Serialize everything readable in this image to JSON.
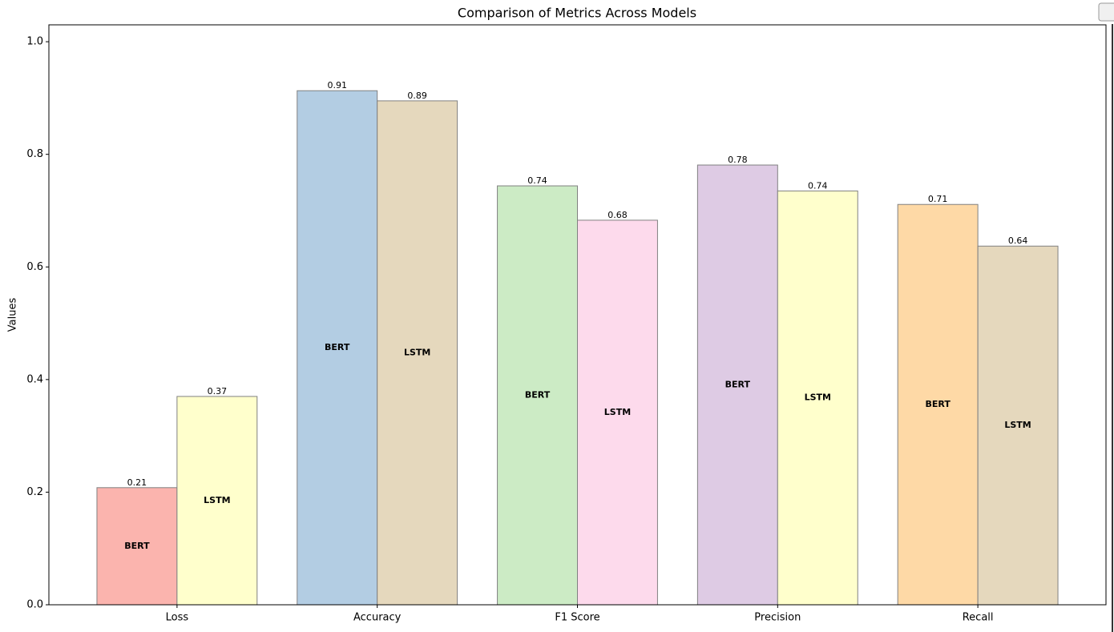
{
  "chart_data": {
    "type": "bar",
    "title": "Comparison of Metrics Across Models",
    "y_label": "Values",
    "categories": [
      "Loss",
      "Accuracy",
      "F1 Score",
      "Precision",
      "Recall"
    ],
    "series": [
      {
        "name": "BERT",
        "colors": [
          "#fbb4ae",
          "#b3cde3",
          "#ccebc5",
          "#decbe4",
          "#fed9a6"
        ],
        "values": [
          0.208,
          0.913,
          0.744,
          0.781,
          0.711
        ],
        "value_labels": [
          "0.21",
          "0.91",
          "0.74",
          "0.78",
          "0.71"
        ]
      },
      {
        "name": "LSTM",
        "colors": [
          "#ffffcc",
          "#e5d8bd",
          "#fddaec",
          "#ffffcc",
          "#e5d8bd"
        ],
        "values": [
          0.37,
          0.895,
          0.683,
          0.735,
          0.637
        ],
        "value_labels": [
          "0.37",
          "0.89",
          "0.68",
          "0.74",
          "0.64"
        ]
      }
    ],
    "edge_color": "#808080",
    "ylim": [
      0,
      1.03
    ],
    "yticks": [
      {
        "value": 0,
        "label": "0.0"
      },
      0.2,
      0.4,
      0.6,
      0.8,
      {
        "value": 1,
        "label": "1.0"
      }
    ],
    "grid": false
  }
}
